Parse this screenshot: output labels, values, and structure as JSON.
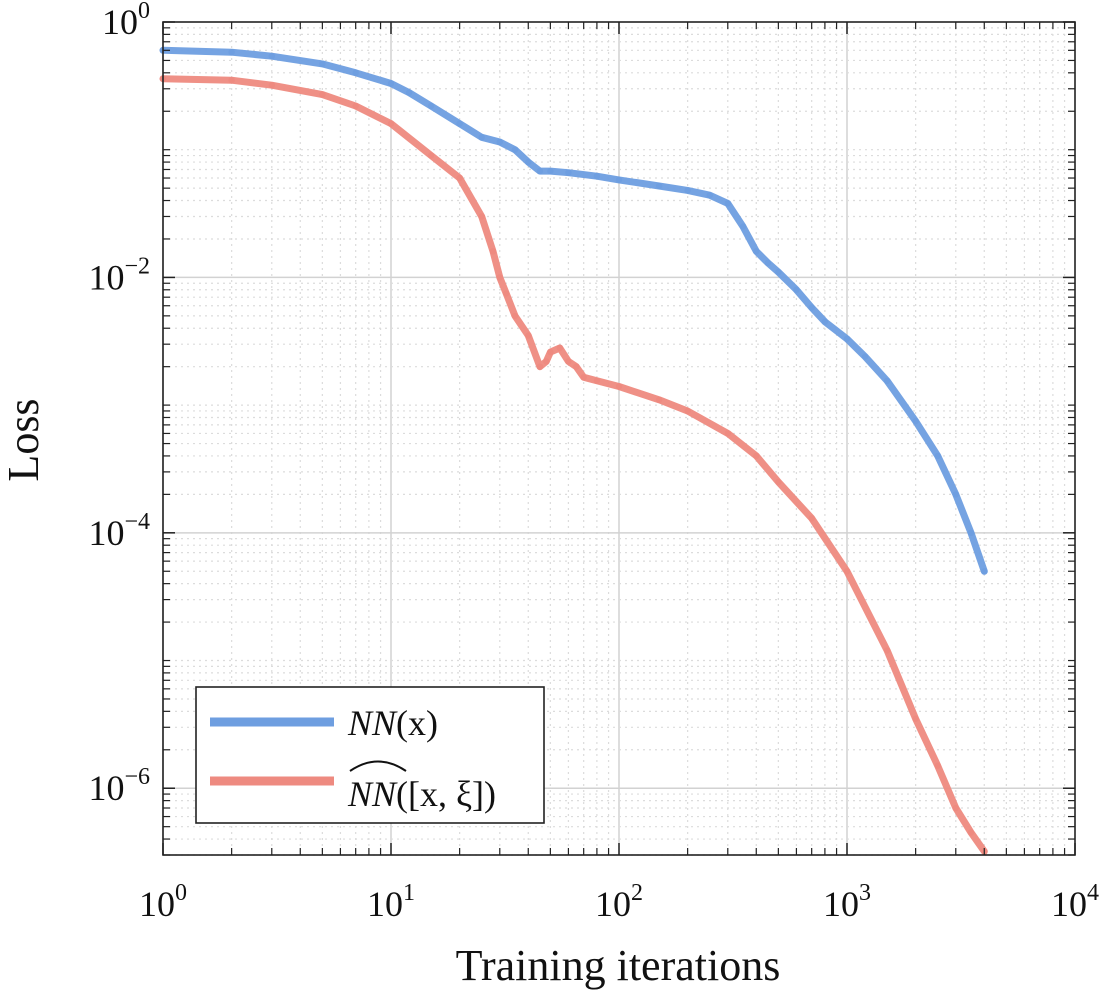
{
  "chart_data": {
    "type": "line",
    "xscale": "log",
    "yscale": "log",
    "xlabel": "Training iterations",
    "ylabel": "Loss",
    "xlim": [
      1,
      10000
    ],
    "ylim": [
      3e-07,
      1
    ],
    "grid": true,
    "minor_grid": true,
    "legend_position": "bottom-left",
    "x_ticks": [
      {
        "value": 1,
        "base": "10",
        "exp": "0"
      },
      {
        "value": 10,
        "base": "10",
        "exp": "1"
      },
      {
        "value": 100,
        "base": "10",
        "exp": "2"
      },
      {
        "value": 1000,
        "base": "10",
        "exp": "3"
      },
      {
        "value": 10000,
        "base": "10",
        "exp": "4"
      }
    ],
    "y_ticks": [
      {
        "value": 1,
        "base": "10",
        "exp": "0"
      },
      {
        "value": 0.01,
        "base": "10",
        "exp": "−2"
      },
      {
        "value": 0.0001,
        "base": "10",
        "exp": "−4"
      },
      {
        "value": 1e-06,
        "base": "10",
        "exp": "−6"
      }
    ],
    "series": [
      {
        "name": "NN(x)",
        "legend_main": "NN",
        "legend_suffix": "(x)",
        "color": "#6e9ee0",
        "x": [
          1,
          2,
          3,
          5,
          7,
          10,
          12,
          15,
          20,
          25,
          30,
          35,
          40,
          45,
          50,
          60,
          80,
          100,
          150,
          200,
          250,
          300,
          350,
          400,
          450,
          500,
          600,
          700,
          800,
          1000,
          1200,
          1500,
          2000,
          2500,
          3000,
          3500,
          4000
        ],
        "values": [
          0.6,
          0.58,
          0.54,
          0.47,
          0.4,
          0.33,
          0.28,
          0.22,
          0.16,
          0.125,
          0.115,
          0.1,
          0.08,
          0.068,
          0.068,
          0.066,
          0.062,
          0.058,
          0.052,
          0.048,
          0.044,
          0.038,
          0.025,
          0.016,
          0.013,
          0.011,
          0.008,
          0.0058,
          0.0045,
          0.0033,
          0.0024,
          0.00155,
          0.00075,
          0.0004,
          0.0002,
          0.0001,
          5e-05
        ]
      },
      {
        "name": "NN̂([x, ξ])",
        "legend_main": "NN",
        "legend_suffix": "([x, ξ])",
        "color": "#ee8a80",
        "x": [
          1,
          2,
          3,
          5,
          7,
          10,
          15,
          20,
          25,
          28,
          30,
          32,
          35,
          40,
          45,
          48,
          50,
          55,
          60,
          65,
          70,
          80,
          100,
          150,
          200,
          300,
          400,
          500,
          700,
          1000,
          1500,
          2000,
          2500,
          3000,
          3500,
          4000
        ],
        "values": [
          0.36,
          0.35,
          0.32,
          0.27,
          0.22,
          0.16,
          0.09,
          0.06,
          0.03,
          0.016,
          0.01,
          0.0075,
          0.005,
          0.0035,
          0.002,
          0.0022,
          0.0026,
          0.0028,
          0.0022,
          0.002,
          0.00165,
          0.00155,
          0.0014,
          0.0011,
          0.0009,
          0.0006,
          0.0004,
          0.00025,
          0.00013,
          5e-05,
          1.2e-05,
          3.5e-06,
          1.5e-06,
          7e-07,
          4.5e-07,
          3.2e-07
        ]
      }
    ]
  }
}
